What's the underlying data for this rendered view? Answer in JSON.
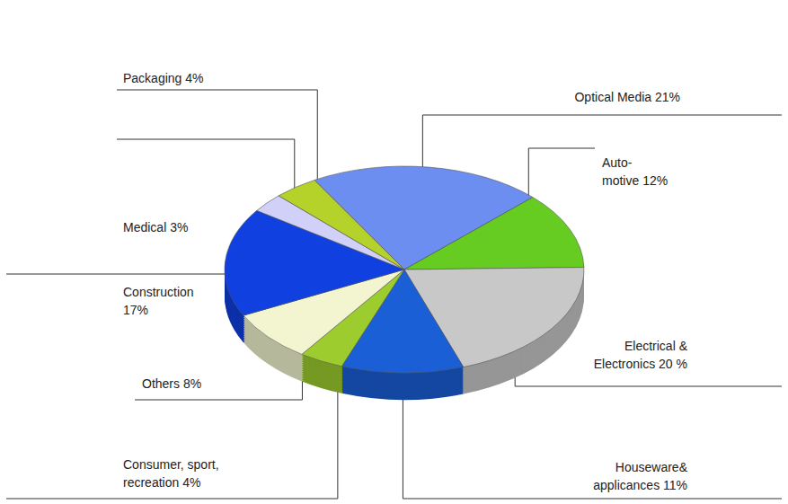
{
  "chart_data": {
    "type": "pie",
    "categories": [
      "Optical Media",
      "Auto-motive",
      "Electrical & Electronics",
      "Houseware& applicances",
      "Consumer, sport, recreation",
      "Others",
      "Construction",
      "Medical",
      "Packaging"
    ],
    "values": [
      21,
      12,
      20,
      11,
      4,
      8,
      17,
      3,
      4
    ],
    "value_labels": [
      "21%",
      "12%",
      "20 %",
      "11%",
      "4%",
      "8%",
      "17%",
      "3%",
      "4%"
    ],
    "colors": [
      "#6b8ef0",
      "#66cc22",
      "#c8c8c8",
      "#1a5fd6",
      "#9ccc2e",
      "#f2f5d0",
      "#1040e0",
      "#d0d0f8",
      "#b4d22a"
    ],
    "data_labels": true
  }
}
